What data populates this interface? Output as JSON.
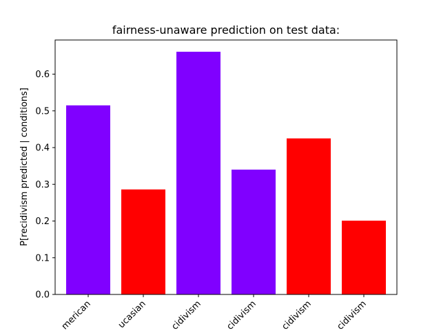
{
  "chart_data": {
    "type": "bar",
    "title": "fairness-unaware prediction on test data:",
    "xlabel": "",
    "ylabel": "P[recidivism predicted | conditions]",
    "categories": [
      "African-American",
      "Caucasian",
      "African-American, recidivism",
      "African-American, no recidivism",
      "Caucasian, recidivism",
      "Caucasian, no recidivism"
    ],
    "visible_tick_labels": [
      "merican",
      "ucasian",
      "cidivism",
      "cidivism",
      "cidivism",
      "cidivism"
    ],
    "values": [
      0.515,
      0.286,
      0.661,
      0.34,
      0.425,
      0.201
    ],
    "bar_colors": [
      "#8000ff",
      "#ff0000",
      "#8000ff",
      "#8000ff",
      "#ff0000",
      "#ff0000"
    ],
    "ylim": [
      0,
      0.693
    ],
    "yticks": [
      0.0,
      0.1,
      0.2,
      0.3,
      0.4,
      0.5,
      0.6
    ],
    "ytick_labels": [
      "0.0",
      "0.1",
      "0.2",
      "0.3",
      "0.4",
      "0.5",
      "0.6"
    ],
    "grid": false,
    "legend": "none"
  }
}
